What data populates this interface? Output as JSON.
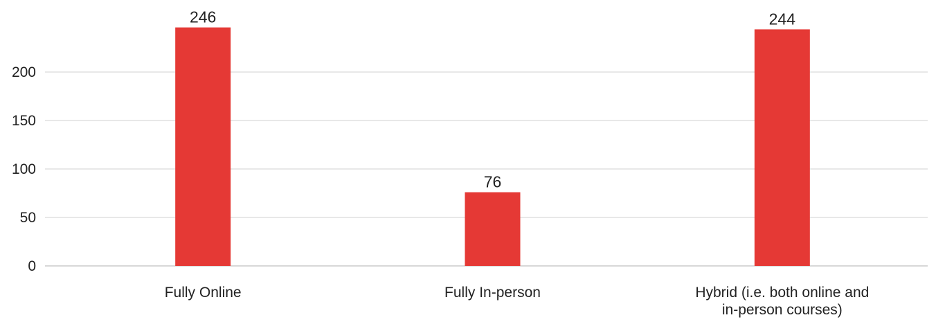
{
  "chart_data": {
    "type": "bar",
    "categories": [
      [
        "Fully Online"
      ],
      [
        "Fully In-person"
      ],
      [
        "Hybrid (i.e. both online and",
        "in-person courses)"
      ]
    ],
    "values": [
      246,
      76,
      244
    ],
    "data_labels": [
      "246",
      "76",
      "244"
    ],
    "yticks": [
      0,
      50,
      100,
      150,
      200
    ],
    "ylim": [
      0,
      250
    ],
    "title": "",
    "xlabel": "",
    "ylabel": "",
    "grid": true,
    "legend": "none",
    "bar_color": "#e53935"
  }
}
